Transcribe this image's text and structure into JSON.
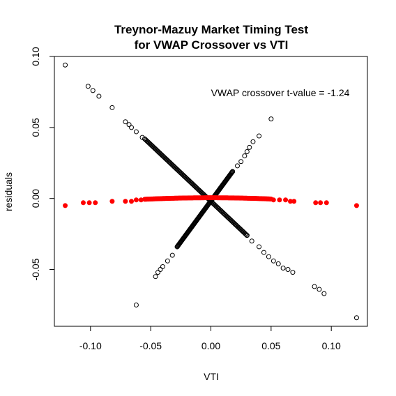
{
  "chart_data": {
    "type": "scatter",
    "title_line1": "Treynor-Mazuy Market Timing Test",
    "title_line2": "for VWAP Crossover vs VTI",
    "xlabel": "VTI",
    "ylabel": "residuals",
    "xlim": [
      -0.13,
      0.13
    ],
    "ylim": [
      -0.09,
      0.1
    ],
    "xticks": [
      -0.1,
      -0.05,
      0.0,
      0.05,
      0.1
    ],
    "xtick_labels": [
      "-0.10",
      "-0.05",
      "0.00",
      "0.05",
      "0.10"
    ],
    "yticks": [
      -0.05,
      0.0,
      0.05,
      0.1
    ],
    "ytick_labels": [
      "-0.05",
      "0.00",
      "0.05",
      "0.10"
    ],
    "annotation": "VWAP crossover t-value = -1.24",
    "grid": false,
    "series": [
      {
        "marker": "open-circle",
        "color": "#000000",
        "points": [
          [
            -0.121,
            0.094
          ],
          [
            -0.102,
            0.079
          ],
          [
            -0.098,
            0.076
          ],
          [
            -0.093,
            0.072
          ],
          [
            -0.082,
            0.064
          ],
          [
            -0.071,
            0.054
          ],
          [
            -0.068,
            0.052
          ],
          [
            -0.066,
            0.05
          ],
          [
            -0.062,
            0.047
          ],
          [
            -0.057,
            0.043
          ],
          [
            0.018,
            0.019
          ],
          [
            0.022,
            0.023
          ],
          [
            0.025,
            0.026
          ],
          [
            0.028,
            0.03
          ],
          [
            0.03,
            0.033
          ],
          [
            0.032,
            0.036
          ],
          [
            0.035,
            0.04
          ],
          [
            0.04,
            0.044
          ],
          [
            0.05,
            0.056
          ],
          [
            -0.062,
            -0.075
          ],
          [
            -0.046,
            -0.055
          ],
          [
            -0.044,
            -0.052
          ],
          [
            -0.042,
            -0.05
          ],
          [
            -0.04,
            -0.048
          ],
          [
            -0.036,
            -0.044
          ],
          [
            -0.032,
            -0.04
          ],
          [
            -0.028,
            -0.034
          ],
          [
            0.03,
            -0.026
          ],
          [
            0.034,
            -0.03
          ],
          [
            0.04,
            -0.034
          ],
          [
            0.044,
            -0.038
          ],
          [
            0.048,
            -0.041
          ],
          [
            0.052,
            -0.044
          ],
          [
            0.056,
            -0.046
          ],
          [
            0.06,
            -0.049
          ],
          [
            0.064,
            -0.05
          ],
          [
            0.068,
            -0.052
          ],
          [
            0.086,
            -0.062
          ],
          [
            0.09,
            -0.064
          ],
          [
            0.094,
            -0.067
          ],
          [
            0.121,
            -0.084
          ]
        ],
        "lines": [
          {
            "from": [
              -0.055,
              0.042
            ],
            "to": [
              0.03,
              -0.026
            ],
            "n": 120
          },
          {
            "from": [
              -0.028,
              -0.034
            ],
            "to": [
              0.018,
              0.019
            ],
            "n": 120
          }
        ]
      },
      {
        "marker": "filled-circle",
        "color": "#ff0000",
        "points": [
          [
            -0.121,
            -0.005
          ],
          [
            -0.106,
            -0.003
          ],
          [
            -0.101,
            -0.003
          ],
          [
            -0.096,
            -0.003
          ],
          [
            -0.082,
            -0.002
          ],
          [
            -0.071,
            -0.002
          ],
          [
            -0.066,
            -0.002
          ],
          [
            -0.062,
            -0.001
          ],
          [
            -0.058,
            -0.001
          ],
          [
            0.052,
            -0.001
          ],
          [
            0.057,
            -0.001
          ],
          [
            0.062,
            -0.001
          ],
          [
            0.066,
            -0.002
          ],
          [
            0.069,
            -0.002
          ],
          [
            0.087,
            -0.003
          ],
          [
            0.091,
            -0.003
          ],
          [
            0.096,
            -0.003
          ],
          [
            0.121,
            -0.005
          ]
        ],
        "curve": {
          "x_from": -0.055,
          "x_to": 0.05,
          "n": 160,
          "a": -0.35
        }
      }
    ]
  }
}
